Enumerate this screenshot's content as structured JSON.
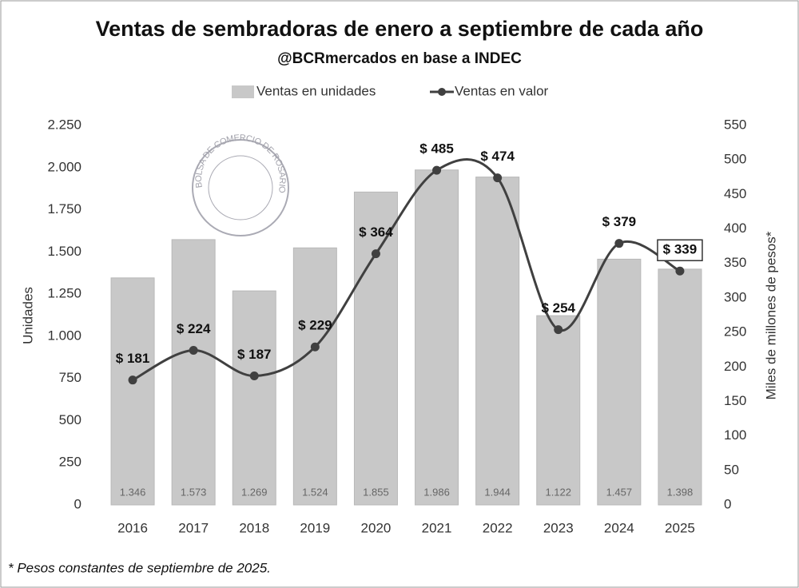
{
  "chart_data": {
    "type": "bar_line",
    "title": "Ventas de sembradoras de enero a septiembre de cada año",
    "subtitle": "@BCRmercados en base a INDEC",
    "watermark": "BOLSA DE COMERCIO DE ROSARIO",
    "ylabel": "Unidades",
    "y2label": "Miles de millones de pesos*",
    "footnote": "* Pesos constantes de septiembre de 2025.",
    "categories": [
      "2016",
      "2017",
      "2018",
      "2019",
      "2020",
      "2021",
      "2022",
      "2023",
      "2024",
      "2025"
    ],
    "series": [
      {
        "name": "Ventas en unidades",
        "type": "bar",
        "color": "#c8c8c8",
        "values": [
          1346,
          1573,
          1269,
          1524,
          1855,
          1986,
          1944,
          1122,
          1457,
          1398
        ],
        "value_labels": [
          "1.346",
          "1.573",
          "1.269",
          "1.524",
          "1.855",
          "1.986",
          "1.944",
          "1.122",
          "1.457",
          "1.398"
        ]
      },
      {
        "name": "Ventas en valor",
        "type": "line",
        "color": "#404040",
        "axis": "y2",
        "values": [
          181,
          224,
          187,
          229,
          364,
          485,
          474,
          254,
          379,
          339
        ],
        "value_labels": [
          "$ 181",
          "$ 224",
          "$ 187",
          "$ 229",
          "$ 364",
          "$ 485",
          "$ 474",
          "$ 254",
          "$ 379",
          "$ 339"
        ]
      }
    ],
    "ylim": [
      0,
      2250
    ],
    "yticks": [
      0,
      250,
      500,
      750,
      {
        "value": 1000,
        "label": "1.000"
      },
      {
        "value": 1250,
        "label": "1.250"
      },
      {
        "value": 1500,
        "label": "1.500"
      },
      {
        "value": 1750,
        "label": "1.750"
      },
      {
        "value": 2000,
        "label": "2.000"
      },
      {
        "value": 2250,
        "label": "2.250"
      }
    ],
    "y2lim": [
      0,
      550
    ],
    "y2ticks": [
      0,
      50,
      100,
      150,
      200,
      250,
      300,
      350,
      400,
      450,
      500,
      550
    ],
    "grid": false,
    "legend": "top"
  }
}
